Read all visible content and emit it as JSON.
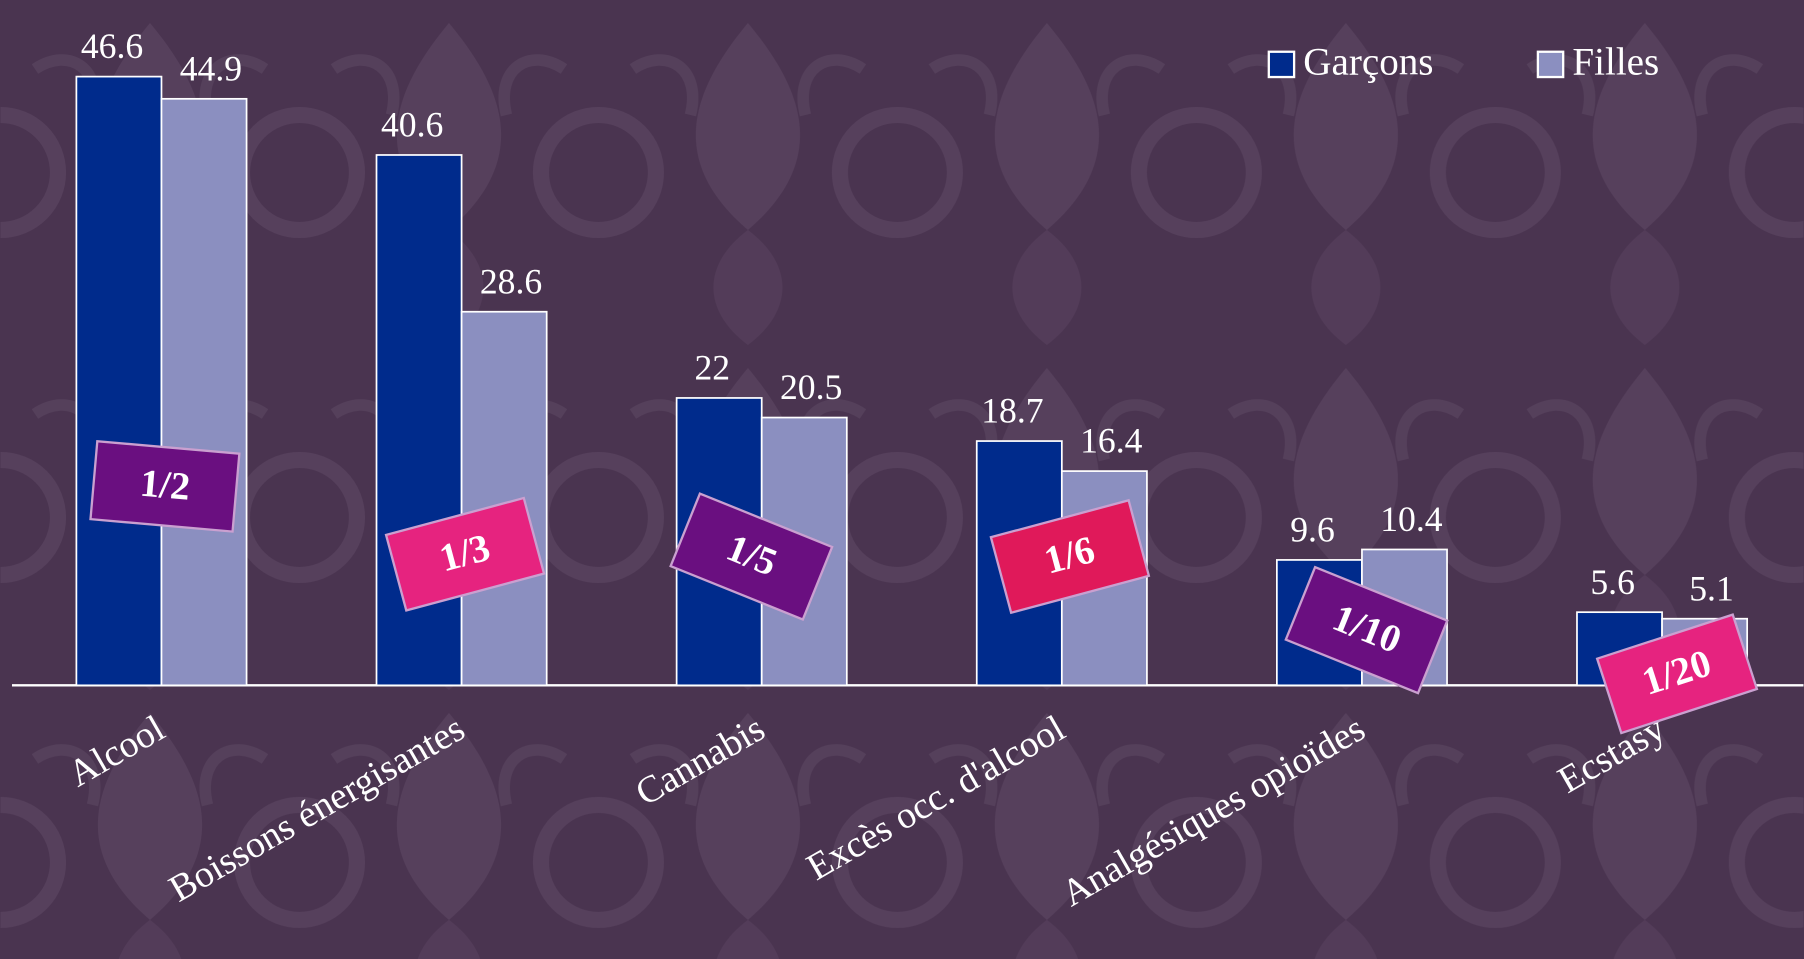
{
  "chart_data": {
    "type": "bar",
    "categories": [
      "Alcool",
      "Boissons énergisantes",
      "Cannabis",
      "Excès occ. d'alcool",
      "Analgésiques opioïdes",
      "Ecstasy"
    ],
    "series": [
      {
        "name": "Garçons",
        "color": "#002b8c",
        "values": [
          46.6,
          40.6,
          22,
          18.7,
          9.6,
          5.6
        ]
      },
      {
        "name": "Filles",
        "color": "#8b8fc0",
        "values": [
          44.9,
          28.6,
          20.5,
          16.4,
          10.4,
          5.1
        ]
      }
    ],
    "ylim": [
      0,
      50
    ],
    "legend": "top-right",
    "annotations": [
      {
        "label": "1/2",
        "color": "#6a0f80"
      },
      {
        "label": "1/3",
        "color": "#e6237f"
      },
      {
        "label": "1/5",
        "color": "#6a0f80"
      },
      {
        "label": "1/6",
        "color": "#e0195a"
      },
      {
        "label": "1/10",
        "color": "#6a0f80"
      },
      {
        "label": "1/20",
        "color": "#e6237f"
      }
    ]
  }
}
